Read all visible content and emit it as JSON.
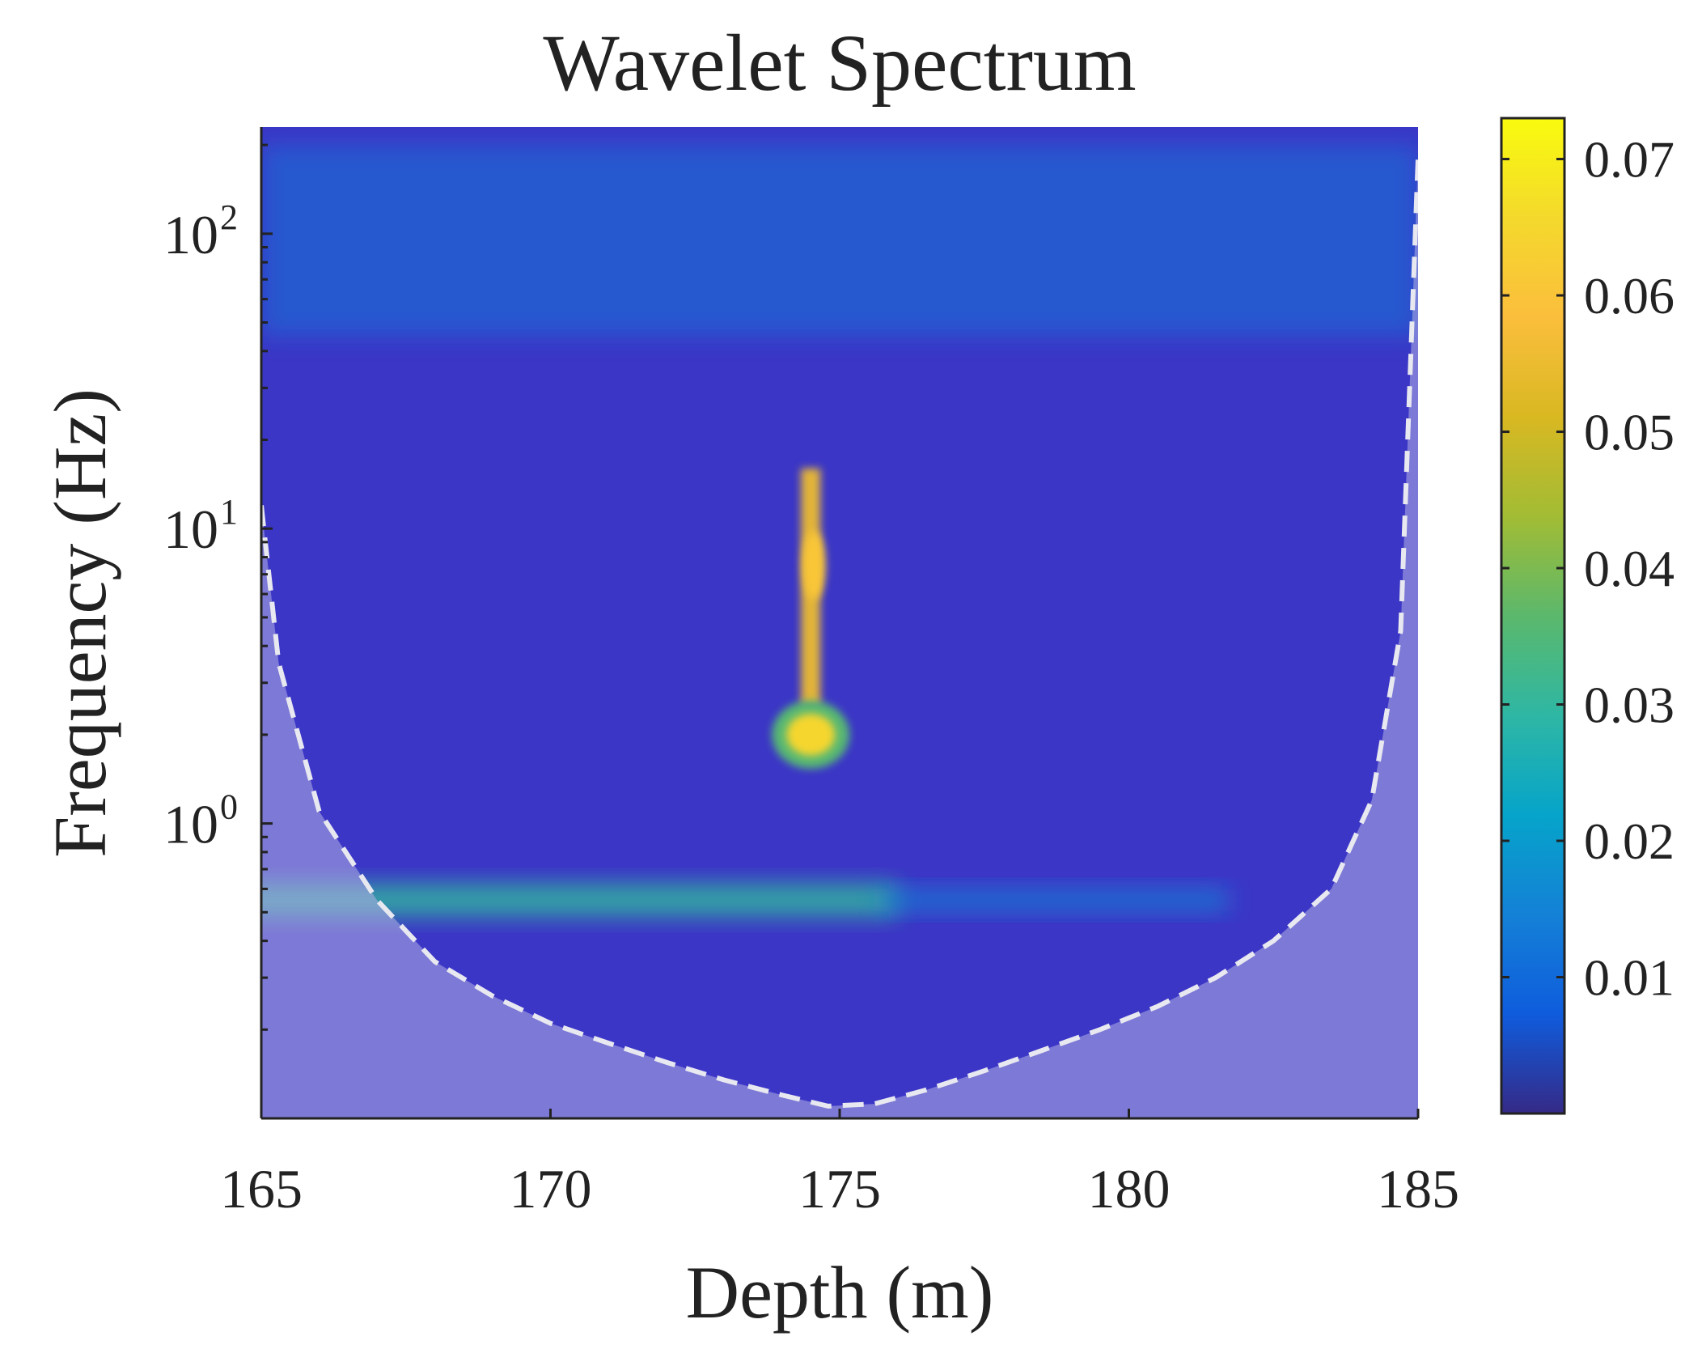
{
  "chart_data": {
    "type": "heatmap",
    "title": "Wavelet Spectrum",
    "xlabel": "Depth (m)",
    "ylabel": "Frequency (Hz)",
    "xlim": [
      165,
      185
    ],
    "ylim": [
      0.1,
      230
    ],
    "yscale": "log",
    "x_ticks": [
      {
        "value": 165,
        "label": "165"
      },
      {
        "value": 170,
        "label": "170"
      },
      {
        "value": 175,
        "label": "175"
      },
      {
        "value": 180,
        "label": "180"
      },
      {
        "value": 185,
        "label": "185"
      }
    ],
    "y_ticks": [
      {
        "value": 1,
        "base": "10",
        "exp": "0"
      },
      {
        "value": 10,
        "base": "10",
        "exp": "1"
      },
      {
        "value": 100,
        "base": "10",
        "exp": "2"
      }
    ],
    "colorbar": {
      "min": 0,
      "max": 0.073,
      "ticks": [
        {
          "value": 0.01,
          "label": "0.01"
        },
        {
          "value": 0.02,
          "label": "0.02"
        },
        {
          "value": 0.03,
          "label": "0.03"
        },
        {
          "value": 0.04,
          "label": "0.04"
        },
        {
          "value": 0.05,
          "label": "0.05"
        },
        {
          "value": 0.06,
          "label": "0.06"
        },
        {
          "value": 0.07,
          "label": "0.07"
        }
      ],
      "colormap": "parula"
    },
    "cone_of_influence": {
      "x": [
        165,
        165.3,
        166,
        167,
        168,
        169,
        170,
        171,
        172,
        173,
        174,
        174.8,
        175.6,
        176.5,
        177.5,
        178.5,
        179.5,
        180.5,
        181.5,
        182.5,
        183.5,
        184.2,
        184.7,
        185
      ],
      "y": [
        12,
        3.5,
        1.1,
        0.55,
        0.34,
        0.26,
        0.21,
        0.18,
        0.155,
        0.135,
        0.12,
        0.11,
        0.112,
        0.125,
        0.145,
        0.17,
        0.2,
        0.24,
        0.3,
        0.4,
        0.6,
        1.2,
        4.5,
        180
      ]
    },
    "features": [
      {
        "name": "peak",
        "depth": 174.5,
        "frequency": 2.0,
        "power": 0.065
      },
      {
        "name": "streak",
        "depth": 174.5,
        "frequency_range": [
          2.5,
          16
        ],
        "power": 0.055
      },
      {
        "name": "low-frequency band",
        "depth_range": [
          165,
          176
        ],
        "frequency": 0.55,
        "power": 0.03
      },
      {
        "name": "high-frequency band",
        "depth_range": [
          165,
          185
        ],
        "frequency_range": [
          45,
          200
        ],
        "power": 0.012
      }
    ]
  }
}
